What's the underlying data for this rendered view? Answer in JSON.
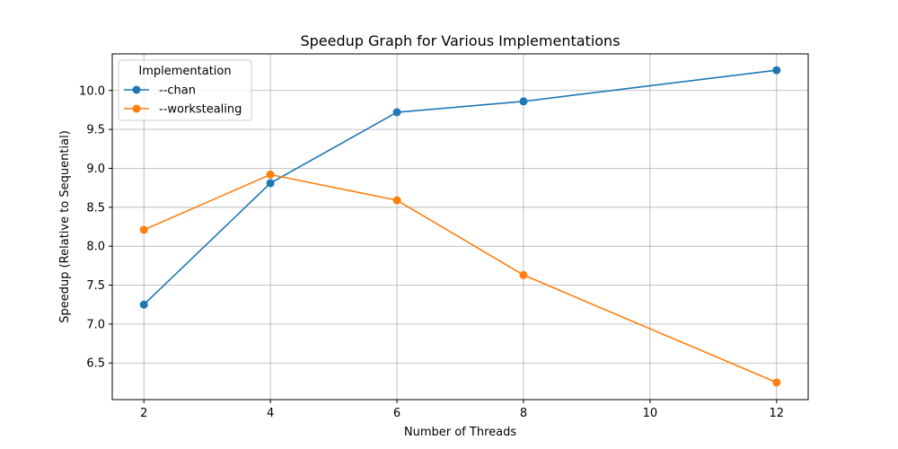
{
  "chart_data": {
    "type": "line",
    "title": "Speedup Graph for Various Implementations",
    "xlabel": "Number of Threads",
    "ylabel": "Speedup (Relative to Sequential)",
    "x": [
      2,
      4,
      6,
      8,
      12
    ],
    "xticks": [
      2,
      4,
      6,
      8,
      10,
      12
    ],
    "yticks": [
      6.5,
      7.0,
      7.5,
      8.0,
      8.5,
      9.0,
      9.5,
      10.0
    ],
    "xlim": [
      1.5,
      12.5
    ],
    "ylim": [
      6.03,
      10.47
    ],
    "grid": true,
    "legend": {
      "title": "Implementation",
      "placement": "top-left"
    },
    "series": [
      {
        "name": "--chan",
        "color": "#1f77b4",
        "values": [
          7.25,
          8.81,
          9.72,
          9.86,
          10.26
        ]
      },
      {
        "name": "--workstealing",
        "color": "#ff7f0e",
        "values": [
          8.21,
          8.92,
          8.59,
          7.63,
          6.25
        ]
      }
    ]
  }
}
